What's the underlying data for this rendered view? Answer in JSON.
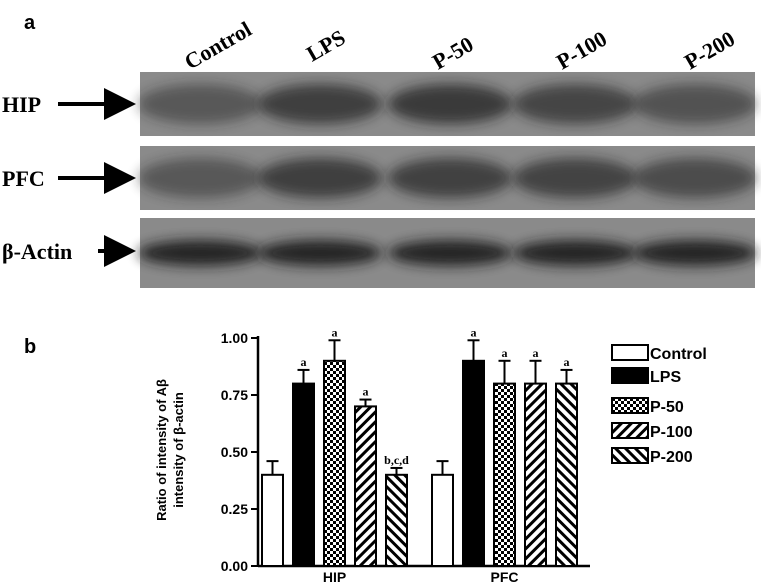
{
  "panel_a": {
    "letter": "a",
    "lanes": [
      "Control",
      "LPS",
      "P-50",
      "P-100",
      "P-200"
    ],
    "rows": [
      {
        "label": "HIP",
        "band_intensity": [
          0.45,
          0.68,
          0.72,
          0.62,
          0.5
        ]
      },
      {
        "label": "PFC",
        "band_intensity": [
          0.45,
          0.68,
          0.66,
          0.64,
          0.56
        ]
      },
      {
        "label": "β-Actin",
        "band_intensity": [
          0.92,
          0.92,
          0.92,
          0.92,
          0.92
        ]
      }
    ],
    "colors": {
      "blot_bg": "#8a8a8a",
      "band": "#1e1e1e"
    }
  },
  "panel_b": {
    "letter": "b"
  },
  "chart_data": {
    "type": "bar",
    "ylabel": "Ratio of intensity of Aβ\nintensity of β-actin",
    "ylim": [
      0,
      1.0
    ],
    "yticks": [
      "0.00",
      "0.25",
      "0.50",
      "0.75",
      "1.00"
    ],
    "categories": [
      "HIP",
      "PFC"
    ],
    "series": [
      {
        "name": "Control",
        "pattern": "white",
        "values": [
          0.4,
          0.4
        ],
        "errors": [
          0.06,
          0.06
        ],
        "labels": [
          "",
          ""
        ]
      },
      {
        "name": "LPS",
        "pattern": "black",
        "values": [
          0.8,
          0.9
        ],
        "errors": [
          0.06,
          0.09
        ],
        "labels": [
          "a",
          "a"
        ]
      },
      {
        "name": "P-50",
        "pattern": "checker",
        "values": [
          0.9,
          0.8
        ],
        "errors": [
          0.09,
          0.1
        ],
        "labels": [
          "a",
          "a"
        ]
      },
      {
        "name": "P-100",
        "pattern": "hatch-back",
        "values": [
          0.7,
          0.8
        ],
        "errors": [
          0.03,
          0.1
        ],
        "labels": [
          "a",
          "a"
        ]
      },
      {
        "name": "P-200",
        "pattern": "hatch-fwd",
        "values": [
          0.4,
          0.8
        ],
        "errors": [
          0.03,
          0.06
        ],
        "labels": [
          "b,c,d",
          "a"
        ]
      }
    ],
    "legend_position": "right"
  }
}
